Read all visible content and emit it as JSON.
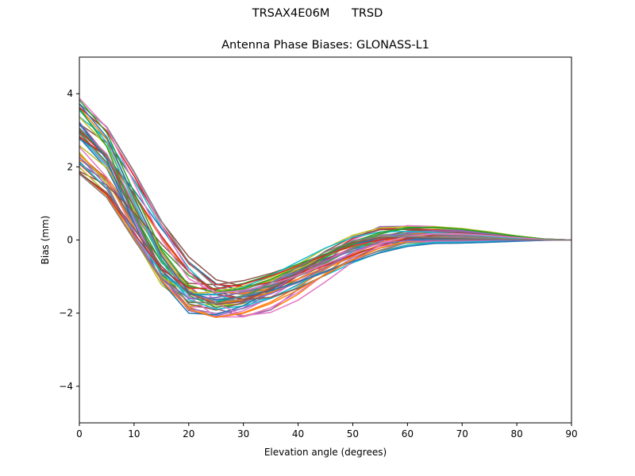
{
  "header": {
    "suptitle": "TRSAX4E06M      TRSD",
    "title": "Antenna Phase Biases: GLONASS-L1"
  },
  "chart_data": {
    "type": "line",
    "title": "Antenna Phase Biases: GLONASS-L1",
    "xlabel": "Elevation angle (degrees)",
    "ylabel": "Bias (mm)",
    "xlim": [
      0,
      90
    ],
    "ylim": [
      -5,
      5
    ],
    "xticks": [
      0,
      10,
      20,
      30,
      40,
      50,
      60,
      70,
      80,
      90
    ],
    "yticks": [
      -4,
      -2,
      0,
      2,
      4
    ],
    "ytick_labels": [
      "−4",
      "−2",
      "0",
      "2",
      "4"
    ],
    "grid": false,
    "legend": "none",
    "x": [
      0,
      5,
      10,
      15,
      20,
      25,
      30,
      35,
      40,
      45,
      50,
      55,
      60,
      65,
      70,
      75,
      80,
      85,
      90
    ],
    "series_count": 48,
    "envelope": {
      "upper_start": 3.9,
      "lower_start": 1.75,
      "upper_trough": -1.2,
      "lower_trough": -2.15
    },
    "colors": [
      "#1f77b4",
      "#ff7f0e",
      "#2ca02c",
      "#d62728",
      "#9467bd",
      "#8c564b",
      "#e377c2",
      "#7f7f7f",
      "#bcbd22",
      "#17becf"
    ]
  }
}
